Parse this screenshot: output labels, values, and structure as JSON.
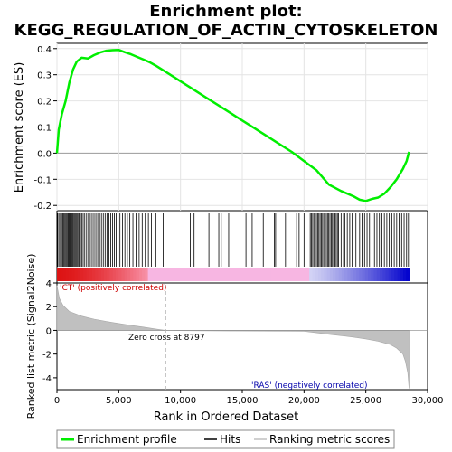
{
  "chart_data": {
    "type": "line",
    "title_line1": "Enrichment plot:",
    "title_line2": "KEGG_REGULATION_OF_ACTIN_CYTOSKELETON",
    "xlabel": "Rank in Ordered Dataset",
    "ylabel_top": "Enrichment score (ES)",
    "ylabel_bottom": "Ranked list metric (Signal2Noise)",
    "x_range": [
      0,
      30000
    ],
    "x_ticks": [
      0,
      5000,
      10000,
      15000,
      20000,
      25000,
      30000
    ],
    "x_tick_labels": [
      "0",
      "5,000",
      "10,000",
      "15,000",
      "20,000",
      "25,000",
      "30,000"
    ],
    "es_ylim": [
      -0.22,
      0.42
    ],
    "es_ticks": [
      -0.2,
      -0.1,
      0.0,
      0.1,
      0.2,
      0.3,
      0.4
    ],
    "es_tick_labels": [
      "-0.2",
      "-0.1",
      "0.0",
      "0.1",
      "0.2",
      "0.3",
      "0.4"
    ],
    "metric_ylim": [
      -5,
      4
    ],
    "metric_ticks": [
      -4,
      -2,
      0,
      2,
      4
    ],
    "metric_tick_labels": [
      "-4",
      "-2",
      "0",
      "2",
      "4"
    ],
    "zero_cross": 8797,
    "zero_cross_label": "Zero cross at 8797",
    "pos_label": "'CT' (positively correlated)",
    "neg_label": "'RAS' (negatively correlated)",
    "n_genes": 28500,
    "es_curve": {
      "x": [
        0,
        150,
        400,
        700,
        1000,
        1300,
        1600,
        2000,
        2500,
        3000,
        3500,
        4000,
        4500,
        5000,
        5500,
        6000,
        6500,
        7000,
        7500,
        8000,
        9000,
        10000,
        11000,
        12000,
        13000,
        14000,
        15000,
        16000,
        17000,
        18000,
        19000,
        20000,
        21000,
        22000,
        23000,
        23500,
        24000,
        24500,
        25000,
        25500,
        26000,
        26500,
        27000,
        27500,
        28000,
        28300,
        28500
      ],
      "y": [
        0.0,
        0.09,
        0.15,
        0.2,
        0.27,
        0.32,
        0.35,
        0.365,
        0.362,
        0.375,
        0.385,
        0.392,
        0.394,
        0.395,
        0.386,
        0.378,
        0.368,
        0.358,
        0.348,
        0.335,
        0.305,
        0.275,
        0.245,
        0.215,
        0.185,
        0.155,
        0.125,
        0.095,
        0.065,
        0.035,
        0.005,
        -0.03,
        -0.065,
        -0.12,
        -0.145,
        -0.155,
        -0.165,
        -0.178,
        -0.183,
        -0.175,
        -0.17,
        -0.155,
        -0.13,
        -0.1,
        -0.06,
        -0.03,
        0.005
      ]
    },
    "hits": [
      60,
      160,
      280,
      380,
      470,
      560,
      640,
      720,
      800,
      880,
      950,
      1020,
      1090,
      1160,
      1230,
      1300,
      1380,
      1460,
      1540,
      1620,
      1700,
      1800,
      1900,
      2000,
      2120,
      2250,
      2400,
      2550,
      2700,
      2850,
      3000,
      3150,
      3300,
      3450,
      3600,
      3750,
      3900,
      4050,
      4200,
      4350,
      4500,
      4650,
      4800,
      4950,
      5100,
      5300,
      5500,
      5700,
      5900,
      6150,
      6400,
      6650,
      6900,
      7150,
      7400,
      7650,
      8000,
      8600,
      10800,
      11100,
      12300,
      13100,
      13300,
      13900,
      15300,
      15800,
      16700,
      17600,
      17700,
      18500,
      19400,
      19600,
      20000,
      20500,
      20600,
      20700,
      20800,
      20900,
      21000,
      21100,
      21200,
      21300,
      21400,
      21500,
      21600,
      21700,
      21800,
      21900,
      22000,
      22100,
      22200,
      22300,
      22400,
      22500,
      22600,
      22700,
      22800,
      23000,
      23200,
      23300,
      23500,
      23700,
      23900,
      24200,
      24500,
      24700,
      24900,
      25100,
      25300,
      25500,
      25700,
      25900,
      26100,
      26300,
      26500,
      26700,
      26900,
      27100,
      27300,
      27500,
      27700,
      27900,
      28100,
      28300,
      28450
    ],
    "metric_curve": {
      "x": [
        0,
        200,
        500,
        1000,
        2000,
        3000,
        4000,
        5000,
        6000,
        7000,
        8000,
        8797,
        10000,
        15000,
        20000,
        21000,
        22000,
        23000,
        24000,
        25000,
        26000,
        27000,
        27500,
        28000,
        28200,
        28400,
        28500
      ],
      "y": [
        3.8,
        2.7,
        2.1,
        1.6,
        1.2,
        0.95,
        0.75,
        0.58,
        0.42,
        0.28,
        0.12,
        0.0,
        -0.02,
        -0.05,
        -0.08,
        -0.2,
        -0.33,
        -0.45,
        -0.57,
        -0.72,
        -0.92,
        -1.2,
        -1.5,
        -2.0,
        -2.6,
        -3.6,
        -4.9
      ]
    },
    "legend": [
      "Enrichment profile",
      "Hits",
      "Ranking metric scores"
    ],
    "colors": {
      "profile": "#00ee00",
      "hits": "#000000",
      "metric_fill": "#c0c0c0",
      "pos": "#ff0000",
      "neg": "#0000cc",
      "zero_cross_line": "#b0b0b0"
    }
  }
}
